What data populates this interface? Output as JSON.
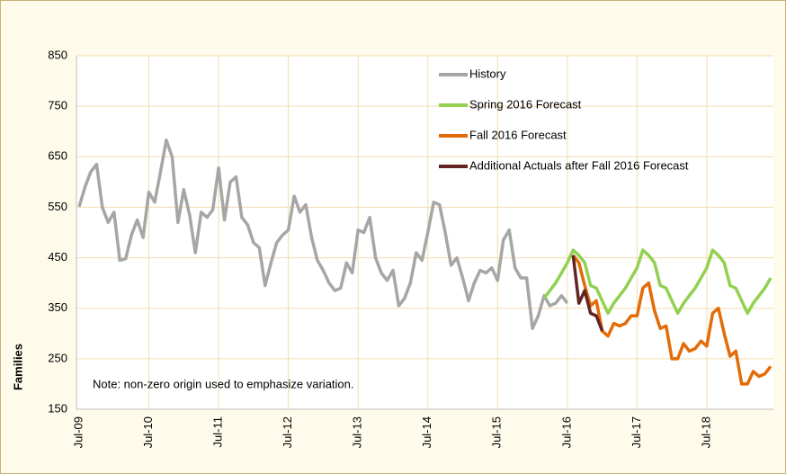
{
  "chart_data": {
    "type": "line",
    "ylabel": "Families",
    "annotation": "Note: non-zero origin used to emphasize variation.",
    "ylim": [
      150,
      850
    ],
    "yticks": [
      150,
      250,
      350,
      450,
      550,
      650,
      750,
      850
    ],
    "grid": true,
    "legend": "top-right",
    "categories": [
      "Jul-09",
      null,
      null,
      null,
      null,
      null,
      null,
      null,
      null,
      null,
      null,
      null,
      "Jul-10",
      null,
      null,
      null,
      null,
      null,
      null,
      null,
      null,
      null,
      null,
      null,
      "Jul-11",
      null,
      null,
      null,
      null,
      null,
      null,
      null,
      null,
      null,
      null,
      null,
      "Jul-12",
      null,
      null,
      null,
      null,
      null,
      null,
      null,
      null,
      null,
      null,
      null,
      "Jul-13",
      null,
      null,
      null,
      null,
      null,
      null,
      null,
      null,
      null,
      null,
      null,
      "Jul-14",
      null,
      null,
      null,
      null,
      null,
      null,
      null,
      null,
      null,
      null,
      null,
      "Jul-15",
      null,
      null,
      null,
      null,
      null,
      null,
      null,
      null,
      null,
      null,
      null,
      "Jul-16",
      null,
      null,
      null,
      null,
      null,
      null,
      null,
      null,
      null,
      null,
      null,
      "Jul-17",
      null,
      null,
      null,
      null,
      null,
      null,
      null,
      null,
      null,
      null,
      null,
      "Jul-18",
      null,
      null,
      null,
      null,
      null,
      null,
      null,
      null,
      null,
      null,
      null
    ],
    "series": [
      {
        "name": "History",
        "color": "#a6a6a6",
        "values": [
          551,
          590,
          620,
          635,
          550,
          520,
          540,
          445,
          448,
          495,
          525,
          490,
          580,
          560,
          620,
          683,
          650,
          520,
          585,
          535,
          460,
          540,
          530,
          545,
          628,
          525,
          600,
          610,
          530,
          515,
          480,
          470,
          395,
          440,
          480,
          495,
          505,
          572,
          540,
          555,
          490,
          445,
          425,
          400,
          385,
          390,
          440,
          420,
          505,
          500,
          530,
          450,
          420,
          405,
          425,
          355,
          370,
          400,
          460,
          445,
          500,
          560,
          555,
          500,
          435,
          450,
          410,
          365,
          400,
          425,
          420,
          430,
          405,
          485,
          505,
          430,
          410,
          410,
          310,
          335,
          375,
          355,
          360,
          375,
          360,
          null,
          null,
          null,
          null,
          null,
          null,
          null,
          null,
          null,
          null,
          null,
          null,
          null,
          null,
          null,
          null,
          null,
          null,
          null,
          null,
          null,
          null,
          null,
          null,
          null,
          null,
          null,
          null,
          null,
          null,
          null,
          null,
          null,
          null,
          null
        ]
      },
      {
        "name": "Spring 2016 Forecast",
        "color": "#92d050",
        "values": [
          null,
          null,
          null,
          null,
          null,
          null,
          null,
          null,
          null,
          null,
          null,
          null,
          null,
          null,
          null,
          null,
          null,
          null,
          null,
          null,
          null,
          null,
          null,
          null,
          null,
          null,
          null,
          null,
          null,
          null,
          null,
          null,
          null,
          null,
          null,
          null,
          null,
          null,
          null,
          null,
          null,
          null,
          null,
          null,
          null,
          null,
          null,
          null,
          null,
          null,
          null,
          null,
          null,
          null,
          null,
          null,
          null,
          null,
          null,
          null,
          null,
          null,
          null,
          null,
          null,
          null,
          null,
          null,
          null,
          null,
          null,
          null,
          null,
          null,
          null,
          null,
          null,
          null,
          null,
          null,
          370,
          385,
          400,
          420,
          440,
          465,
          455,
          440,
          395,
          390,
          365,
          340,
          360,
          375,
          390,
          410,
          430,
          465,
          455,
          440,
          395,
          390,
          365,
          340,
          360,
          375,
          390,
          410,
          430,
          465,
          455,
          440,
          395,
          390,
          365,
          340,
          360,
          375,
          390,
          410
        ]
      },
      {
        "name": "Fall 2016 Forecast",
        "color": "#e36c09",
        "values": [
          null,
          null,
          null,
          null,
          null,
          null,
          null,
          null,
          null,
          null,
          null,
          null,
          null,
          null,
          null,
          null,
          null,
          null,
          null,
          null,
          null,
          null,
          null,
          null,
          null,
          null,
          null,
          null,
          null,
          null,
          null,
          null,
          null,
          null,
          null,
          null,
          null,
          null,
          null,
          null,
          null,
          null,
          null,
          null,
          null,
          null,
          null,
          null,
          null,
          null,
          null,
          null,
          null,
          null,
          null,
          null,
          null,
          null,
          null,
          null,
          null,
          null,
          null,
          null,
          null,
          null,
          null,
          null,
          null,
          null,
          null,
          null,
          null,
          null,
          null,
          null,
          null,
          null,
          null,
          null,
          null,
          null,
          null,
          null,
          null,
          455,
          440,
          395,
          355,
          365,
          305,
          295,
          320,
          315,
          320,
          335,
          335,
          390,
          400,
          345,
          310,
          315,
          250,
          250,
          280,
          265,
          270,
          285,
          275,
          340,
          350,
          300,
          255,
          265,
          200,
          200,
          225,
          215,
          220,
          235
        ]
      },
      {
        "name": "Additional Actuals after Fall 2016 Forecast",
        "color": "#632523",
        "values": [
          null,
          null,
          null,
          null,
          null,
          null,
          null,
          null,
          null,
          null,
          null,
          null,
          null,
          null,
          null,
          null,
          null,
          null,
          null,
          null,
          null,
          null,
          null,
          null,
          null,
          null,
          null,
          null,
          null,
          null,
          null,
          null,
          null,
          null,
          null,
          null,
          null,
          null,
          null,
          null,
          null,
          null,
          null,
          null,
          null,
          null,
          null,
          null,
          null,
          null,
          null,
          null,
          null,
          null,
          null,
          null,
          null,
          null,
          null,
          null,
          null,
          null,
          null,
          null,
          null,
          null,
          null,
          null,
          null,
          null,
          null,
          null,
          null,
          null,
          null,
          null,
          null,
          null,
          null,
          null,
          null,
          null,
          null,
          null,
          null,
          455,
          360,
          385,
          340,
          335,
          305,
          null,
          null,
          null,
          null,
          null,
          null,
          null,
          null,
          null,
          null,
          null,
          null,
          null,
          null,
          null,
          null,
          null,
          null,
          null,
          null,
          null,
          null,
          null,
          null,
          null,
          null,
          null,
          null,
          null
        ]
      }
    ]
  }
}
